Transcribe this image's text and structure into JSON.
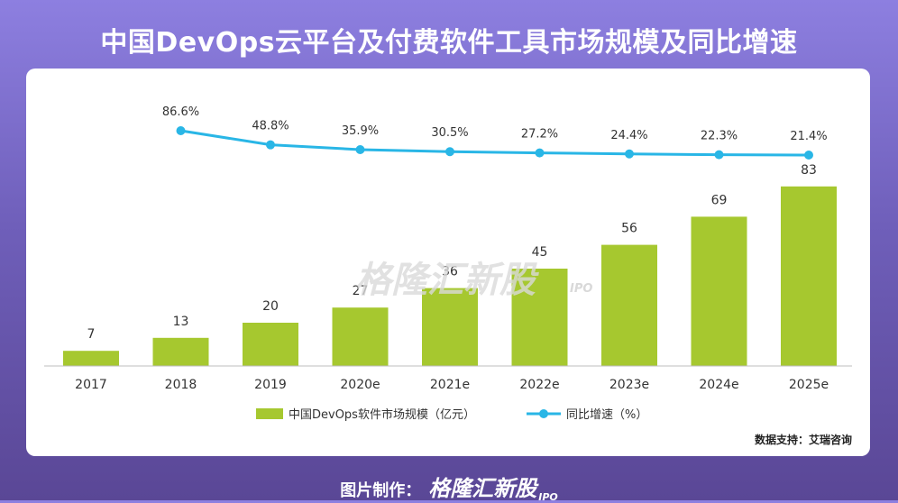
{
  "title": "中国DevOps云平台及付费软件工具市场规模及同比增速",
  "source": "数据支持：艾瑞咨询",
  "footer": {
    "label": "图片制作：",
    "brand": "格隆汇新股",
    "brand_sub": "IPO"
  },
  "watermark": {
    "text": "格隆汇新股",
    "sub": "IPO"
  },
  "colors": {
    "bar": "#a6c82f",
    "line": "#29b6e6",
    "text": "#333333"
  },
  "chart_data": {
    "type": "bar",
    "categories": [
      "2017",
      "2018",
      "2019",
      "2020e",
      "2021e",
      "2022e",
      "2023e",
      "2024e",
      "2025e"
    ],
    "series": [
      {
        "name": "中国DevOps软件市场规模（亿元）",
        "type": "bar",
        "values": [
          7,
          13,
          20,
          27,
          36,
          45,
          56,
          69,
          83
        ]
      },
      {
        "name": "同比增速（%）",
        "type": "line",
        "values": [
          null,
          86.6,
          48.8,
          35.9,
          30.5,
          27.2,
          24.4,
          22.3,
          21.4
        ],
        "labels": [
          "",
          "86.6%",
          "48.8%",
          "35.9%",
          "30.5%",
          "27.2%",
          "24.4%",
          "22.3%",
          "21.4%"
        ]
      }
    ],
    "bar_value_labels": [
      "7",
      "13",
      "20",
      "27",
      "36",
      "45",
      "56",
      "69",
      "83"
    ],
    "legend_position": "bottom-center",
    "grid": false
  }
}
